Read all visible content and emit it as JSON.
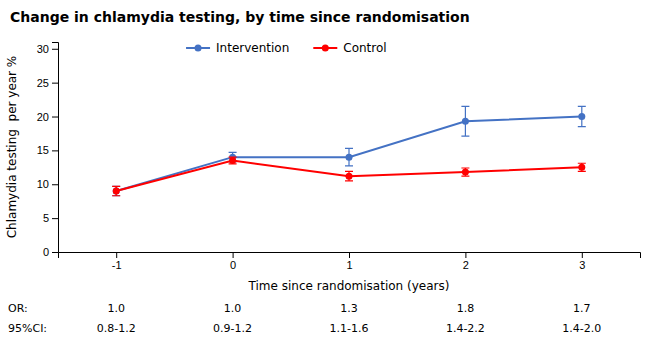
{
  "chart_data": {
    "type": "line",
    "title": "Change in chlamydia testing, by time since randomisation",
    "x_label": "Time since randomisation (years)",
    "y_label": "Chlamydia testing  per year %",
    "x": [
      -1,
      0,
      1,
      2,
      3
    ],
    "series": [
      {
        "name": "Intervention",
        "color": "#4472C4",
        "values": [
          9.0,
          14.0,
          14.0,
          19.3,
          20.0
        ],
        "error_low": [
          0.7,
          0.7,
          1.3,
          2.2,
          1.5
        ],
        "error_high": [
          0.7,
          0.7,
          1.3,
          2.2,
          1.5
        ]
      },
      {
        "name": "Control",
        "color": "#FF0000",
        "values": [
          9.0,
          13.5,
          11.2,
          11.8,
          12.5
        ],
        "error_low": [
          0.7,
          0.5,
          0.7,
          0.6,
          0.6
        ],
        "error_high": [
          0.7,
          0.5,
          0.7,
          0.6,
          0.6
        ]
      }
    ],
    "xlim": [
      -1.5,
      3.5
    ],
    "ylim": [
      0,
      31
    ],
    "xticks": [
      -1,
      0,
      1,
      2,
      3
    ],
    "yticks": [
      0,
      5,
      10,
      15,
      20,
      25,
      30
    ],
    "grid": false,
    "legend": "upper left",
    "annotations": {
      "or_label": "OR:",
      "ci_label": "95%CI:",
      "or_values": [
        "1.0",
        "1.0",
        "1.3",
        "1.8",
        "1.7"
      ],
      "ci_values": [
        "0.8-1.2",
        "0.9-1.2",
        "1.1-1.6",
        "1.4-2.2",
        "1.4-2.0"
      ]
    }
  }
}
